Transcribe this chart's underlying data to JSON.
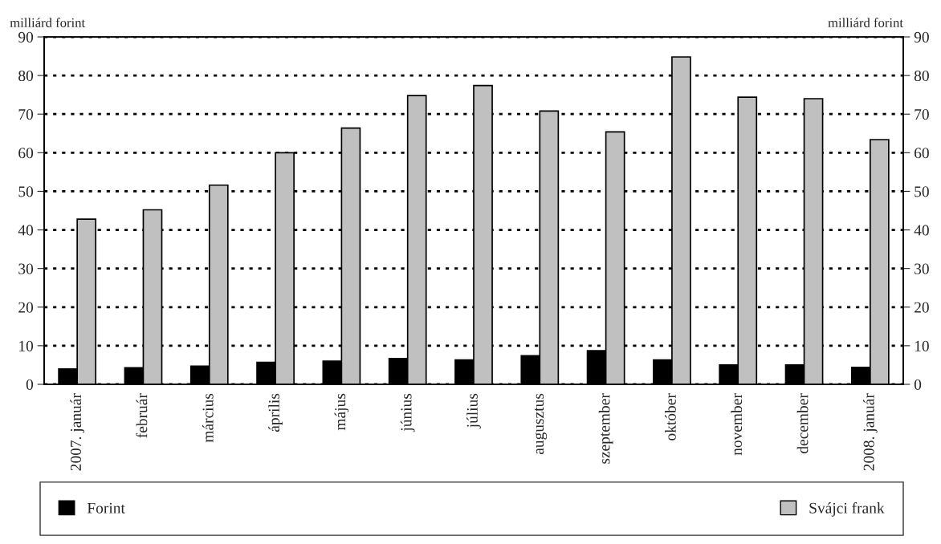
{
  "chart_data": {
    "type": "bar",
    "categories": [
      "2007. január",
      "február",
      "március",
      "április",
      "május",
      "június",
      "július",
      "augusztus",
      "szeptember",
      "október",
      "november",
      "december",
      "2008. január"
    ],
    "series": [
      {
        "name": "Forint",
        "color": "#000000",
        "values": [
          4.0,
          4.3,
          4.7,
          5.7,
          6.0,
          6.7,
          6.3,
          7.4,
          8.7,
          6.3,
          5.0,
          5.0,
          4.4
        ]
      },
      {
        "name": "Svájci frank",
        "color": "#c0c0c0",
        "values": [
          42.8,
          45.2,
          51.6,
          60.0,
          66.4,
          74.8,
          77.4,
          70.8,
          65.4,
          84.8,
          74.4,
          74.0,
          63.4
        ]
      }
    ],
    "ylabel": "milliárd forint",
    "y2label": "milliárd forint",
    "ylim": [
      0,
      90
    ],
    "yticks": [
      0,
      10,
      20,
      30,
      40,
      50,
      60,
      70,
      80,
      90
    ],
    "y2lim": [
      0,
      90
    ],
    "y2ticks": [
      0,
      10,
      20,
      30,
      40,
      50,
      60,
      70,
      80,
      90
    ],
    "grid": "y",
    "legend": "bottom"
  }
}
